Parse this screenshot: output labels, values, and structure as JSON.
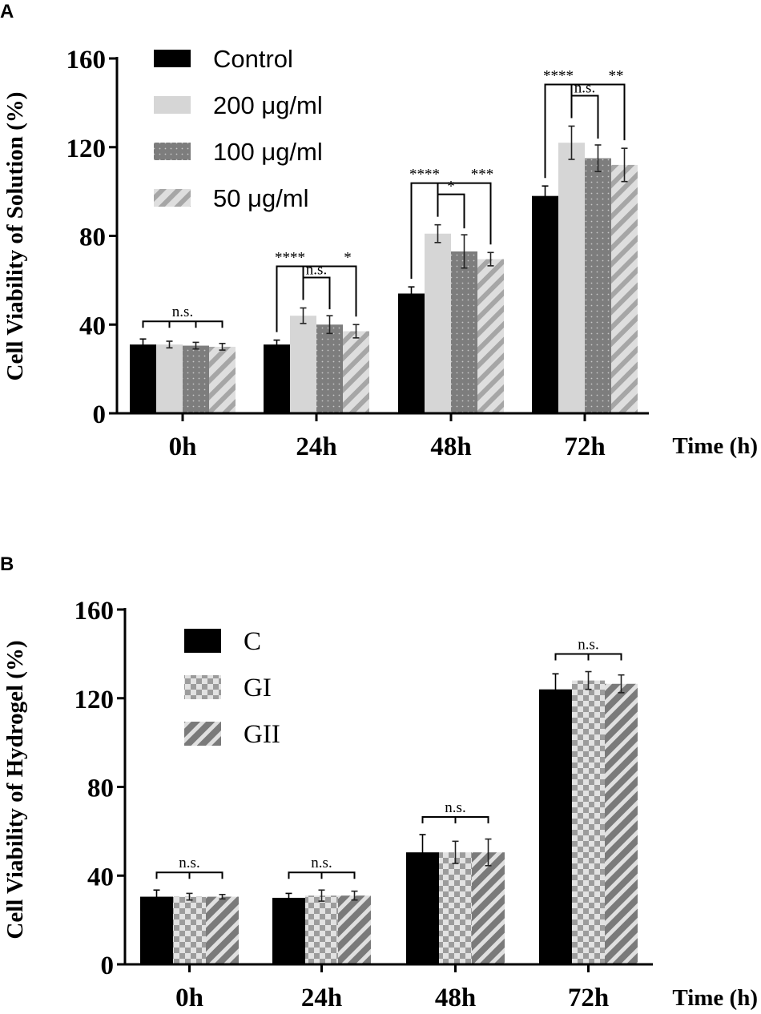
{
  "chart_data": [
    {
      "type": "bar",
      "panel": "A",
      "title": "",
      "xlabel": "Time (h)",
      "ylabel": "Cell Viability of Solution (%)",
      "ylim": [
        0,
        160
      ],
      "yticks": [
        "0",
        "40",
        "80",
        "120",
        "160"
      ],
      "categories": [
        "0h",
        "24h",
        "48h",
        "72h"
      ],
      "legend_position": "top-left",
      "series": [
        {
          "name": "Control",
          "pattern": "solid-black",
          "values": [
            31,
            31,
            54,
            98
          ],
          "errors": [
            2.5,
            2,
            3,
            4.5
          ]
        },
        {
          "name": "200 μg/ml",
          "pattern": "light-gray",
          "values": [
            31,
            44,
            81,
            122
          ],
          "errors": [
            1.5,
            3.5,
            4,
            7.5
          ]
        },
        {
          "name": "100 μg/ml",
          "pattern": "gray-dotted",
          "values": [
            30.5,
            40,
            73,
            115
          ],
          "errors": [
            1.5,
            4,
            7.5,
            6
          ]
        },
        {
          "name": "50 μg/ml",
          "pattern": "light-gray-striped",
          "values": [
            30,
            37,
            69.5,
            112
          ],
          "errors": [
            1.5,
            3,
            3,
            7.5
          ]
        }
      ],
      "annotations": [
        {
          "group": "0h",
          "type": "overall",
          "label": "n.s."
        },
        {
          "group": "24h",
          "type": "fork",
          "left_label": "****",
          "center_label": "n.s.",
          "right_label": "*"
        },
        {
          "group": "48h",
          "type": "fork",
          "left_label": "****",
          "center_label": "*",
          "right_label": "***"
        },
        {
          "group": "72h",
          "type": "fork",
          "left_label": "****",
          "center_label": "n.s.",
          "right_label": "**"
        }
      ]
    },
    {
      "type": "bar",
      "panel": "B",
      "title": "",
      "xlabel": "Time (h)",
      "ylabel": "Cell Viability of Hydrogel (%)",
      "ylim": [
        0,
        160
      ],
      "yticks": [
        "0",
        "40",
        "80",
        "120",
        "160"
      ],
      "categories": [
        "0h",
        "24h",
        "48h",
        "72h"
      ],
      "legend_position": "top-left",
      "series": [
        {
          "name": "C",
          "pattern": "solid-black",
          "values": [
            30.5,
            30,
            50.5,
            124
          ],
          "errors": [
            3,
            2,
            8,
            7
          ]
        },
        {
          "name": "GI",
          "pattern": "checkered",
          "values": [
            30.5,
            31,
            50.5,
            128
          ],
          "errors": [
            1.5,
            2.5,
            5,
            4
          ]
        },
        {
          "name": "GII",
          "pattern": "gray-striped",
          "values": [
            30.5,
            31,
            50.5,
            126.5
          ],
          "errors": [
            1,
            2,
            6,
            4
          ]
        }
      ],
      "annotations": [
        {
          "group": "0h",
          "type": "overall",
          "label": "n.s."
        },
        {
          "group": "24h",
          "type": "overall",
          "label": "n.s."
        },
        {
          "group": "48h",
          "type": "overall",
          "label": "n.s."
        },
        {
          "group": "72h",
          "type": "overall",
          "label": "n.s."
        }
      ]
    }
  ]
}
